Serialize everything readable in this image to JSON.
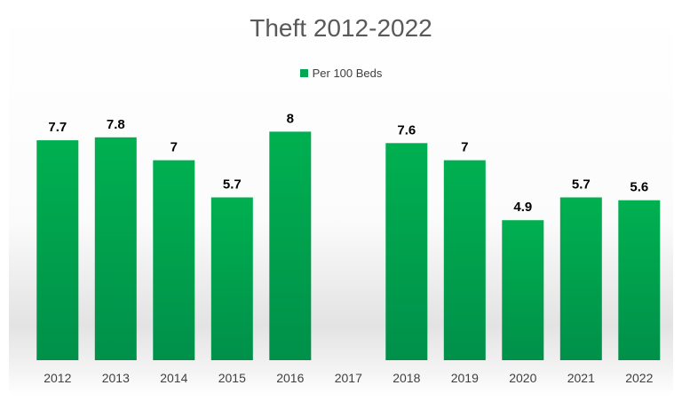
{
  "chart_data": {
    "type": "bar",
    "title": "Theft 2012-2022",
    "legend": [
      "Per 100 Beds"
    ],
    "legend_position": "top",
    "categories": [
      "2012",
      "2013",
      "2014",
      "2015",
      "2016",
      "2017",
      "2018",
      "2019",
      "2020",
      "2021",
      "2022"
    ],
    "series": [
      {
        "name": "Per 100 Beds",
        "values": [
          7.7,
          7.8,
          7,
          5.7,
          8,
          null,
          7.6,
          7,
          4.9,
          5.7,
          5.6
        ]
      }
    ],
    "data_labels": [
      "7.7",
      "7.8",
      "7",
      "5.7",
      "8",
      "",
      "7.6",
      "7",
      "4.9",
      "5.7",
      "5.6"
    ],
    "ylim": [
      0,
      10
    ],
    "grid": false,
    "colors": {
      "bar_top": "#00b050",
      "bar_bottom": "#00904a"
    }
  }
}
